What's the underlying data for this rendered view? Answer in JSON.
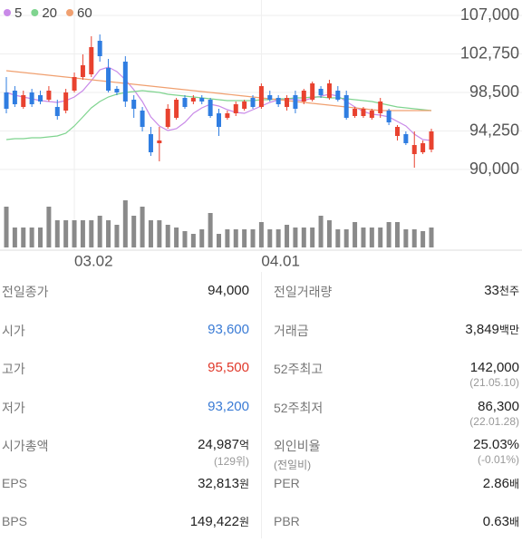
{
  "chart_data": {
    "type": "candlestick",
    "categories": [
      null,
      null,
      null,
      null,
      null,
      null,
      null,
      null,
      "03.02",
      null,
      null,
      null,
      null,
      null,
      null,
      null,
      null,
      null,
      null,
      null,
      null,
      null,
      null,
      null,
      null,
      null,
      null,
      null,
      null,
      null,
      "04.01",
      null,
      null,
      null,
      null,
      null,
      null,
      null,
      null,
      null,
      null,
      null,
      null,
      null,
      null,
      null,
      null,
      null,
      null,
      null,
      null
    ],
    "open": [
      98500,
      98700,
      96900,
      98500,
      98200,
      97700,
      96900,
      96500,
      98700,
      100200,
      100500,
      104200,
      101200,
      98900,
      101900,
      97700,
      96500,
      93900,
      92900,
      94700,
      95700,
      97900,
      97500,
      97900,
      97700,
      96200,
      95700,
      96200,
      96700,
      97900,
      96900,
      98200,
      97900,
      96900,
      98200,
      97500,
      97700,
      98900,
      97900,
      98700,
      98200,
      95900,
      95900,
      95700,
      96200,
      96500,
      93700,
      93900,
      91700,
      91900,
      92200
    ],
    "high": [
      100200,
      99200,
      98700,
      98900,
      98700,
      99200,
      97700,
      98900,
      100700,
      102700,
      104700,
      104900,
      102200,
      99200,
      102500,
      98200,
      96900,
      94700,
      94700,
      97200,
      97900,
      98200,
      98200,
      98200,
      97900,
      96700,
      96500,
      97500,
      97700,
      98200,
      99500,
      98700,
      98200,
      98200,
      98700,
      98900,
      99700,
      99200,
      99900,
      99200,
      98700,
      96900,
      96900,
      96700,
      97900,
      96700,
      94900,
      94200,
      94200,
      93200,
      94500
    ],
    "low": [
      96200,
      96900,
      96700,
      96900,
      97200,
      97500,
      95500,
      96200,
      98500,
      99900,
      100200,
      101900,
      98500,
      98200,
      96900,
      95700,
      94200,
      91500,
      90900,
      94500,
      95500,
      96700,
      97200,
      97200,
      95700,
      93700,
      95500,
      95900,
      96500,
      96700,
      96700,
      97500,
      96900,
      96500,
      96200,
      97200,
      97500,
      97900,
      97700,
      97500,
      95500,
      95700,
      95700,
      95500,
      95700,
      94900,
      93200,
      92700,
      90200,
      91700,
      91900
    ],
    "close": [
      96700,
      97200,
      98200,
      97200,
      97500,
      98700,
      95900,
      98500,
      100200,
      101500,
      103500,
      102500,
      98700,
      98500,
      97500,
      96700,
      94700,
      91900,
      93200,
      96700,
      97700,
      96900,
      97900,
      97500,
      95900,
      94700,
      96200,
      97200,
      97500,
      96900,
      99200,
      97700,
      97200,
      97900,
      96700,
      98700,
      99500,
      98200,
      99500,
      97700,
      95700,
      96700,
      96700,
      96500,
      97500,
      95200,
      94700,
      92900,
      92700,
      92900,
      94200
    ],
    "volume": [
      45,
      22,
      22,
      22,
      22,
      45,
      30,
      30,
      30,
      30,
      30,
      35,
      30,
      25,
      52,
      35,
      45,
      30,
      30,
      25,
      22,
      18,
      15,
      20,
      38,
      15,
      20,
      20,
      20,
      20,
      28,
      20,
      20,
      25,
      22,
      22,
      22,
      35,
      30,
      20,
      20,
      28,
      22,
      22,
      22,
      28,
      28,
      20,
      20,
      18,
      22
    ],
    "up_color": "#e8422f",
    "down_color": "#2f7de1",
    "volume_color": "#8a8a8a",
    "series": [
      {
        "name": "5",
        "color": "#c98ae8",
        "values": [
          98500,
          98200,
          98000,
          97800,
          97600,
          97500,
          97400,
          97600,
          98000,
          98700,
          99800,
          101000,
          101300,
          100800,
          99900,
          98800,
          97500,
          95800,
          94800,
          94300,
          94500,
          95200,
          96200,
          96800,
          97200,
          97000,
          96600,
          96300,
          96200,
          96600,
          97000,
          97400,
          97700,
          97800,
          97700,
          97600,
          97900,
          98100,
          98300,
          98100,
          97500,
          96900,
          96400,
          96100,
          96000,
          95800,
          95300,
          94800,
          93900,
          93300,
          93200
        ]
      },
      {
        "name": "20",
        "color": "#7fd48f",
        "values": [
          93300,
          93400,
          93400,
          93500,
          93500,
          93600,
          93700,
          94000,
          94800,
          95800,
          96800,
          97500,
          98000,
          98300,
          98500,
          98600,
          98700,
          98600,
          98500,
          98300,
          98200,
          98100,
          98000,
          97900,
          97800,
          97700,
          97600,
          97600,
          97600,
          97600,
          97700,
          97700,
          97800,
          97800,
          97900,
          97900,
          98000,
          98000,
          97900,
          97900,
          97800,
          97700,
          97600,
          97500,
          97300,
          97100,
          96900,
          96800,
          96700,
          96600,
          96500
        ]
      },
      {
        "name": "60",
        "color": "#f0a070",
        "values": [
          100900,
          100800,
          100700,
          100600,
          100500,
          100400,
          100300,
          100200,
          100100,
          100000,
          99900,
          99800,
          99700,
          99600,
          99500,
          99400,
          99300,
          99200,
          99100,
          99000,
          98900,
          98800,
          98700,
          98600,
          98500,
          98400,
          98300,
          98200,
          98100,
          98000,
          97900,
          97800,
          97700,
          97600,
          97500,
          97400,
          97300,
          97200,
          97100,
          97000,
          96900,
          96800,
          96700,
          96600,
          96500,
          96500,
          96500,
          96500,
          96500,
          96500,
          96500
        ]
      }
    ],
    "ylim": [
      90000,
      107000
    ],
    "yticks": [
      {
        "value": 107000,
        "label": "107,000"
      },
      {
        "value": 102750,
        "label": "102,750"
      },
      {
        "value": 98500,
        "label": "98,500"
      },
      {
        "value": 94250,
        "label": "94,250"
      },
      {
        "value": 90000,
        "label": "90,000"
      }
    ],
    "grid": true
  },
  "table": {
    "left": [
      {
        "label": "전일종가",
        "value": "94,000"
      },
      {
        "label": "시가",
        "value": "93,600",
        "color": "#3a7bd5"
      },
      {
        "label": "고가",
        "value": "95,500",
        "color": "#e0392b"
      },
      {
        "label": "저가",
        "value": "93,200",
        "color": "#3a7bd5"
      },
      {
        "label": "시가총액",
        "value": "24,987",
        "unit": "억",
        "sub": "(129위)"
      },
      {
        "label": "EPS",
        "value": "32,813",
        "unit": "원"
      },
      {
        "label": "BPS",
        "value": "149,422",
        "unit": "원"
      }
    ],
    "right": [
      {
        "label": "전일거래량",
        "value": "33",
        "unit": "천주"
      },
      {
        "label": "거래금",
        "value": "3,849",
        "unit": "백만"
      },
      {
        "label": "52주최고",
        "value": "142,000",
        "sub": "(21.05.10)"
      },
      {
        "label": "52주최저",
        "value": "86,300",
        "sub": "(22.01.28)"
      },
      {
        "label": "외인비율",
        "label_sub": "(전일비)",
        "value": "25.03%",
        "sub": "(-0.01%)"
      },
      {
        "label": "PER",
        "value": "2.86",
        "unit": "배"
      },
      {
        "label": "PBR",
        "value": "0.63",
        "unit": "배"
      }
    ]
  }
}
